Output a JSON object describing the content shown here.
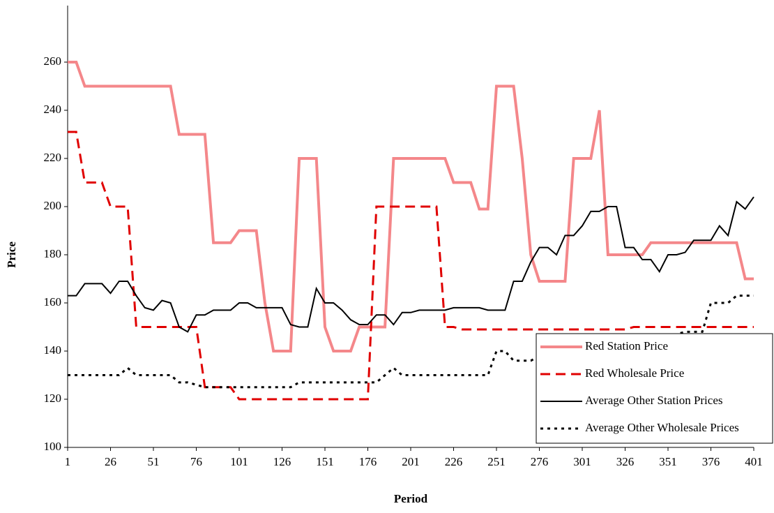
{
  "chart_data": {
    "type": "line",
    "xlabel": "Period",
    "ylabel": "Price",
    "x": [
      1,
      6,
      11,
      16,
      21,
      26,
      31,
      36,
      41,
      46,
      51,
      56,
      61,
      66,
      71,
      76,
      81,
      86,
      91,
      96,
      101,
      106,
      111,
      116,
      121,
      126,
      131,
      136,
      141,
      146,
      151,
      156,
      161,
      166,
      171,
      176,
      181,
      186,
      191,
      196,
      201,
      206,
      211,
      216,
      221,
      226,
      231,
      236,
      241,
      246,
      251,
      256,
      261,
      266,
      271,
      276,
      281,
      286,
      291,
      296,
      301,
      306,
      311,
      316,
      321,
      326,
      331,
      336,
      341,
      346,
      351,
      356,
      361,
      366,
      371,
      376,
      381,
      386,
      391,
      396,
      401
    ],
    "series": [
      {
        "name": "Red Station Price",
        "color": "#f4878a",
        "style": "solid",
        "values": [
          260,
          260,
          250,
          250,
          250,
          250,
          250,
          250,
          250,
          250,
          250,
          250,
          250,
          230,
          230,
          230,
          230,
          185,
          185,
          185,
          190,
          190,
          190,
          160,
          140,
          140,
          140,
          220,
          220,
          220,
          150,
          140,
          140,
          140,
          150,
          150,
          150,
          150,
          220,
          220,
          220,
          220,
          220,
          220,
          220,
          210,
          210,
          210,
          199,
          199,
          250,
          250,
          250,
          220,
          180,
          169,
          169,
          169,
          169,
          220,
          220,
          220,
          240,
          180,
          180,
          180,
          180,
          180,
          185,
          185,
          185,
          185,
          185,
          185,
          185,
          185,
          185,
          185,
          185,
          170,
          170
        ]
      },
      {
        "name": "Red Wholesale Price",
        "color": "#e00000",
        "style": "dashed",
        "values": [
          231,
          231,
          210,
          210,
          210,
          200,
          200,
          200,
          150,
          150,
          150,
          150,
          150,
          150,
          150,
          150,
          125,
          125,
          125,
          125,
          120,
          120,
          120,
          120,
          120,
          120,
          120,
          120,
          120,
          120,
          120,
          120,
          120,
          120,
          120,
          120,
          200,
          200,
          200,
          200,
          200,
          200,
          200,
          200,
          150,
          150,
          149,
          149,
          149,
          149,
          149,
          149,
          149,
          149,
          149,
          149,
          149,
          149,
          149,
          149,
          149,
          149,
          149,
          149,
          149,
          149,
          150,
          150,
          150,
          150,
          150,
          150,
          150,
          150,
          150,
          150,
          150,
          150,
          150,
          150,
          150
        ]
      },
      {
        "name": "Average Other Station Prices",
        "color": "#000000",
        "style": "solid",
        "values": [
          163,
          163,
          168,
          168,
          168,
          164,
          169,
          169,
          163,
          158,
          157,
          161,
          160,
          150,
          148,
          155,
          155,
          157,
          157,
          157,
          160,
          160,
          158,
          158,
          158,
          158,
          151,
          150,
          150,
          166,
          160,
          160,
          157,
          153,
          151,
          151,
          155,
          155,
          151,
          156,
          156,
          157,
          157,
          157,
          157,
          158,
          158,
          158,
          158,
          157,
          157,
          157,
          169,
          169,
          177,
          183,
          183,
          180,
          188,
          188,
          192,
          198,
          198,
          200,
          200,
          183,
          183,
          178,
          178,
          173,
          180,
          180,
          181,
          186,
          186,
          186,
          192,
          188,
          202,
          199,
          204
        ]
      },
      {
        "name": "Average Other Wholesale Prices",
        "color": "#000000",
        "style": "dotted",
        "values": [
          130,
          130,
          130,
          130,
          130,
          130,
          130,
          133,
          130,
          130,
          130,
          130,
          130,
          127,
          127,
          126,
          125,
          125,
          125,
          125,
          125,
          125,
          125,
          125,
          125,
          125,
          125,
          127,
          127,
          127,
          127,
          127,
          127,
          127,
          127,
          127,
          127,
          130,
          133,
          130,
          130,
          130,
          130,
          130,
          130,
          130,
          130,
          130,
          130,
          130,
          140,
          140,
          136,
          136,
          136,
          138,
          143,
          140,
          140,
          140,
          140,
          140,
          145,
          145,
          145,
          145,
          145,
          145,
          145,
          145,
          145,
          147,
          148,
          148,
          148,
          160,
          160,
          160,
          163,
          163,
          163
        ]
      }
    ],
    "xlim": [
      1,
      401
    ],
    "xticks": [
      1,
      26,
      51,
      76,
      101,
      126,
      151,
      176,
      201,
      226,
      251,
      276,
      301,
      326,
      351,
      376,
      401
    ],
    "ylim": [
      100,
      280
    ],
    "yticks": [
      100,
      120,
      140,
      160,
      180,
      200,
      220,
      240,
      260
    ],
    "legend": "lower right"
  }
}
